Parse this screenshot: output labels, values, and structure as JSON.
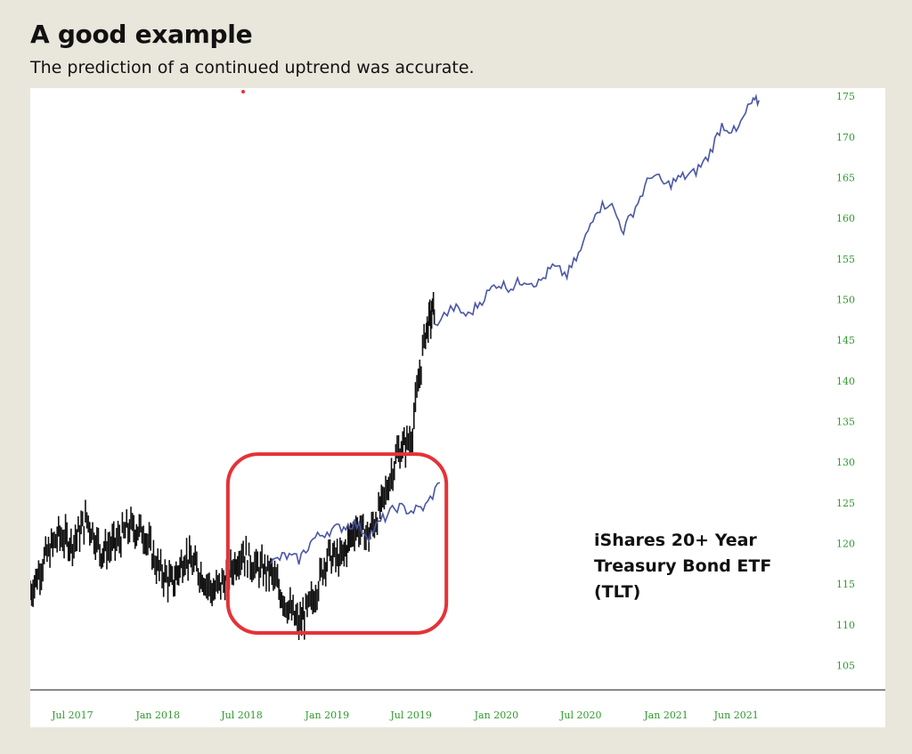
{
  "header": {
    "title": "A good example",
    "subtitle": "The prediction of a continued uptrend was accurate."
  },
  "colors": {
    "background": "#e9e6dc",
    "actual": "#111111",
    "forecast": "#4a56a6",
    "highlight": "#e53238",
    "tick": "#2e9a2e"
  },
  "annotation": {
    "line1": "iShares 20+ Year",
    "line2": "Treasury Bond ETF",
    "line3": "(TLT)"
  },
  "chart_data": {
    "type": "line",
    "title": "",
    "xlabel": "",
    "ylabel": "",
    "ylim": [
      102,
      176
    ],
    "xlim": [
      "2017-04-01",
      "2021-12-01"
    ],
    "y_axis_position": "right",
    "grid": false,
    "x_ticks": [
      {
        "label": "Jul 2017",
        "date": "2017-07-01"
      },
      {
        "label": "Jan 2018",
        "date": "2018-01-01"
      },
      {
        "label": "Jul 2018",
        "date": "2018-07-01"
      },
      {
        "label": "Jan 2019",
        "date": "2019-01-01"
      },
      {
        "label": "Jul 2019",
        "date": "2019-07-01"
      },
      {
        "label": "Jan 2020",
        "date": "2020-01-01"
      },
      {
        "label": "Jul 2020",
        "date": "2020-07-01"
      },
      {
        "label": "Jan 2021",
        "date": "2021-01-01"
      },
      {
        "label": "Jun 2021",
        "date": "2021-06-01"
      }
    ],
    "y_ticks": [
      105,
      110,
      115,
      120,
      125,
      130,
      135,
      140,
      145,
      150,
      155,
      160,
      165,
      170,
      175
    ],
    "series": [
      {
        "kind": "price-bars",
        "points": [
          [
            "2017-04-01",
            114.0
          ],
          [
            "2017-05-01",
            118.0
          ],
          [
            "2017-06-01",
            121.0
          ],
          [
            "2017-07-01",
            120.0
          ],
          [
            "2017-08-01",
            123.0
          ],
          [
            "2017-09-01",
            119.0
          ],
          [
            "2017-10-01",
            120.0
          ],
          [
            "2017-11-01",
            122.0
          ],
          [
            "2017-12-01",
            121.5
          ],
          [
            "2018-01-01",
            117.0
          ],
          [
            "2018-02-01",
            115.0
          ],
          [
            "2018-03-01",
            118.5
          ],
          [
            "2018-04-01",
            116.5
          ],
          [
            "2018-05-01",
            114.0
          ],
          [
            "2018-06-01",
            116.0
          ],
          [
            "2018-07-01",
            119.0
          ],
          [
            "2018-08-01",
            117.0
          ],
          [
            "2018-09-01",
            116.5
          ],
          [
            "2018-10-01",
            113.0
          ],
          [
            "2018-11-01",
            110.0
          ],
          [
            "2018-12-01",
            113.0
          ],
          [
            "2019-01-01",
            118.5
          ],
          [
            "2019-02-01",
            118.0
          ],
          [
            "2019-03-01",
            122.0
          ],
          [
            "2019-04-01",
            121.0
          ],
          [
            "2019-05-01",
            125.0
          ],
          [
            "2019-06-01",
            131.0
          ],
          [
            "2019-07-01",
            133.0
          ],
          [
            "2019-08-01",
            146.0
          ],
          [
            "2019-08-20",
            149.0
          ]
        ]
      },
      {
        "kind": "forecast-line",
        "points": [
          [
            "2018-09-01",
            117.5
          ],
          [
            "2018-10-01",
            118.5
          ],
          [
            "2018-11-01",
            118.0
          ],
          [
            "2018-12-01",
            120.5
          ],
          [
            "2019-01-01",
            121.5
          ],
          [
            "2019-02-01",
            122.0
          ],
          [
            "2019-03-01",
            122.5
          ],
          [
            "2019-04-01",
            121.0
          ],
          [
            "2019-05-01",
            123.0
          ],
          [
            "2019-06-01",
            124.5
          ],
          [
            "2019-07-01",
            124.0
          ],
          [
            "2019-08-01",
            124.5
          ],
          [
            "2019-09-01",
            127.5
          ]
        ]
      },
      {
        "kind": "forecast-line",
        "points": [
          [
            "2019-08-20",
            147.0
          ],
          [
            "2019-10-01",
            149.0
          ],
          [
            "2019-11-01",
            148.0
          ],
          [
            "2019-12-01",
            150.0
          ],
          [
            "2020-01-01",
            152.0
          ],
          [
            "2020-02-01",
            151.5
          ],
          [
            "2020-03-01",
            152.5
          ],
          [
            "2020-04-01",
            152.0
          ],
          [
            "2020-05-01",
            154.0
          ],
          [
            "2020-06-01",
            153.0
          ],
          [
            "2020-07-01",
            156.0
          ],
          [
            "2020-08-01",
            161.0
          ],
          [
            "2020-09-01",
            162.0
          ],
          [
            "2020-10-01",
            158.5
          ],
          [
            "2020-11-01",
            162.0
          ],
          [
            "2020-12-01",
            165.5
          ],
          [
            "2021-01-01",
            164.0
          ],
          [
            "2021-02-01",
            165.0
          ],
          [
            "2021-03-01",
            165.5
          ],
          [
            "2021-04-01",
            167.5
          ],
          [
            "2021-05-01",
            171.5
          ],
          [
            "2021-06-01",
            170.5
          ],
          [
            "2021-07-01",
            174.0
          ],
          [
            "2021-07-20",
            174.5
          ]
        ]
      }
    ],
    "highlight_box": {
      "x_start": "2018-06-01",
      "x_end": "2019-09-15",
      "y_low": 109.0,
      "y_high": 131.0
    }
  }
}
